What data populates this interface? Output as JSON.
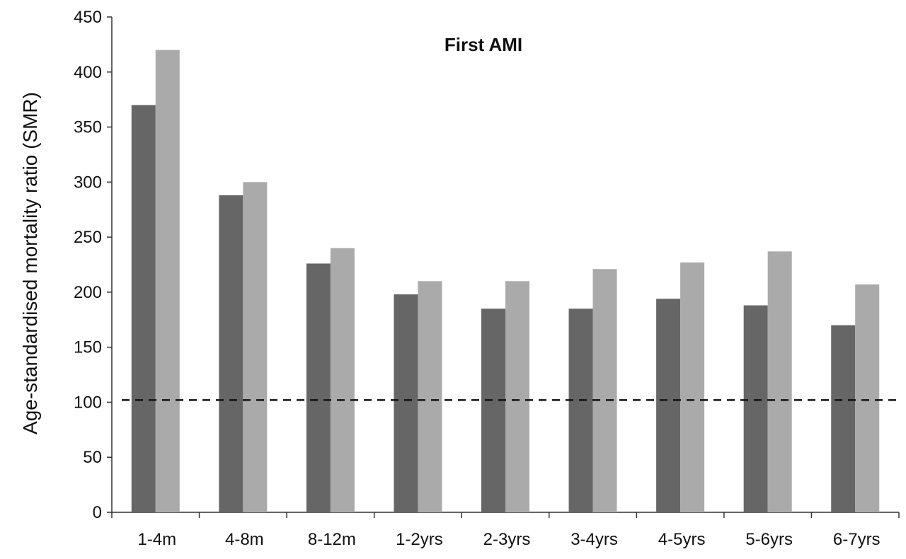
{
  "chart_data": {
    "type": "bar",
    "title": "First AMI",
    "xlabel": "",
    "ylabel": "Age-standardised mortality ratio (SMR)",
    "ylim": [
      0,
      450
    ],
    "yticks": [
      0,
      50,
      100,
      150,
      200,
      250,
      300,
      350,
      400,
      450
    ],
    "categories": [
      "1-4m",
      "4-8m",
      "8-12m",
      "1-2yrs",
      "2-3yrs",
      "3-4yrs",
      "4-5yrs",
      "5-6yrs",
      "6-7yrs"
    ],
    "series": [
      {
        "values": [
          370,
          288,
          226,
          198,
          185,
          185,
          194,
          188,
          170
        ],
        "color": "#666666"
      },
      {
        "values": [
          420,
          300,
          240,
          210,
          210,
          221,
          227,
          237,
          207
        ],
        "color": "#aaaaaa"
      }
    ],
    "reference_line": {
      "y": 102,
      "style": "dashed",
      "color": "#111111"
    },
    "grid": false,
    "legend": "none"
  }
}
